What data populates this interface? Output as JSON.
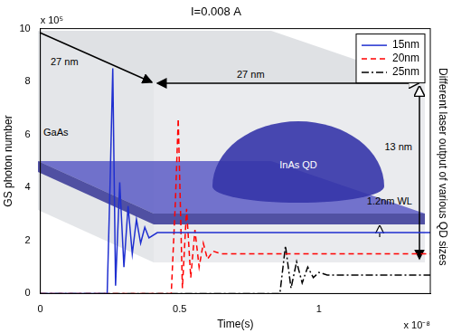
{
  "chart_data": {
    "type": "line",
    "title": "I=0.008 A",
    "x_label": "Time(s)",
    "y_label": "GS photon number",
    "x_multiplier": "x 10⁻⁸",
    "y_multiplier": "x 10⁵",
    "side_text": "Different laser output of various QD sizes",
    "xlim": [
      0,
      1.4
    ],
    "xticks": [
      0,
      0.5,
      1
    ],
    "ylim": [
      0,
      10
    ],
    "yticks": [
      0,
      2,
      4,
      6,
      8,
      10
    ],
    "grid": false,
    "legend": "upper right",
    "series": [
      {
        "name": "15nm",
        "color": "#1f2fd0",
        "line_style": "solid",
        "x": [
          0,
          0.24,
          0.25,
          0.26,
          0.27,
          0.285,
          0.3,
          0.315,
          0.33,
          0.345,
          0.36,
          0.375,
          0.39,
          0.42,
          1.4
        ],
        "values": [
          0,
          0,
          4.0,
          8.5,
          0.3,
          4.2,
          1.0,
          3.3,
          1.5,
          2.8,
          1.9,
          2.5,
          2.1,
          2.3,
          2.3
        ]
      },
      {
        "name": "20nm",
        "color": "#ff0000",
        "line_style": "dashed",
        "x": [
          0,
          0.47,
          0.485,
          0.495,
          0.51,
          0.525,
          0.54,
          0.555,
          0.57,
          0.585,
          0.6,
          0.62,
          0.65,
          1.4
        ],
        "values": [
          0,
          0,
          3.5,
          6.6,
          0.2,
          3.2,
          0.6,
          2.4,
          1.0,
          1.9,
          1.3,
          1.6,
          1.5,
          1.5
        ]
      },
      {
        "name": "25nm",
        "color": "#000000",
        "line_style": "dashdot",
        "x": [
          0,
          0.86,
          0.88,
          0.9,
          0.92,
          0.94,
          0.96,
          0.98,
          1.0,
          1.03,
          1.4
        ],
        "values": [
          0,
          0,
          1.8,
          0.2,
          1.2,
          0.4,
          1.0,
          0.6,
          0.8,
          0.7,
          0.7
        ]
      }
    ]
  },
  "diagram": {
    "matrix": "GaAs",
    "dot": "InAs QD",
    "depth": "27 nm",
    "width": "27 nm",
    "height": "13 nm",
    "wetting_layer": "1.2nm WL"
  }
}
